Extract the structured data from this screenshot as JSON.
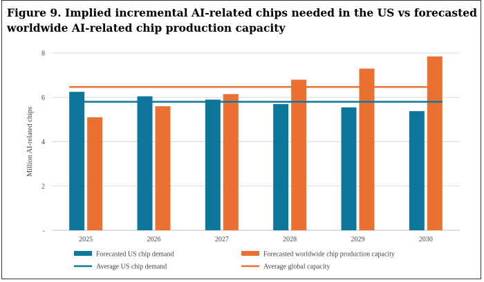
{
  "figure_title": "Figure 9. Implied incremental AI-related chips needed in the US vs forecasted worldwide AI-related chip production capacity",
  "colors": {
    "us_demand": "#0f769b",
    "global_capacity": "#ea7131",
    "gridline": "#d9d9d9",
    "axis": "#bfbfbf"
  },
  "chart_data": {
    "type": "bar",
    "title": "",
    "xlabel": "",
    "ylabel": "Million AI-related chips",
    "ylim": [
      0,
      8
    ],
    "yticks": [
      {
        "value": 0,
        "label": "-"
      },
      {
        "value": 2,
        "label": "2"
      },
      {
        "value": 4,
        "label": "4"
      },
      {
        "value": 6,
        "label": "6"
      },
      {
        "value": 8,
        "label": "8"
      }
    ],
    "categories": [
      "2025",
      "2026",
      "2027",
      "2028",
      "2029",
      "2030"
    ],
    "series": [
      {
        "name": "Forecasted US chip demand",
        "color": "#0f769b",
        "values": [
          6.25,
          6.05,
          5.9,
          5.7,
          5.55,
          5.38
        ]
      },
      {
        "name": "Forecasted worldwide chip production capacity",
        "color": "#ea7131",
        "values": [
          5.1,
          5.6,
          6.15,
          6.8,
          7.3,
          7.85
        ]
      }
    ],
    "lines": [
      {
        "name": "Average US chip demand",
        "color": "#0f769b",
        "value": 5.8
      },
      {
        "name": "Average global capacity",
        "color": "#ea7131",
        "value": 6.47
      }
    ],
    "grid": true,
    "legend_position": "bottom"
  }
}
